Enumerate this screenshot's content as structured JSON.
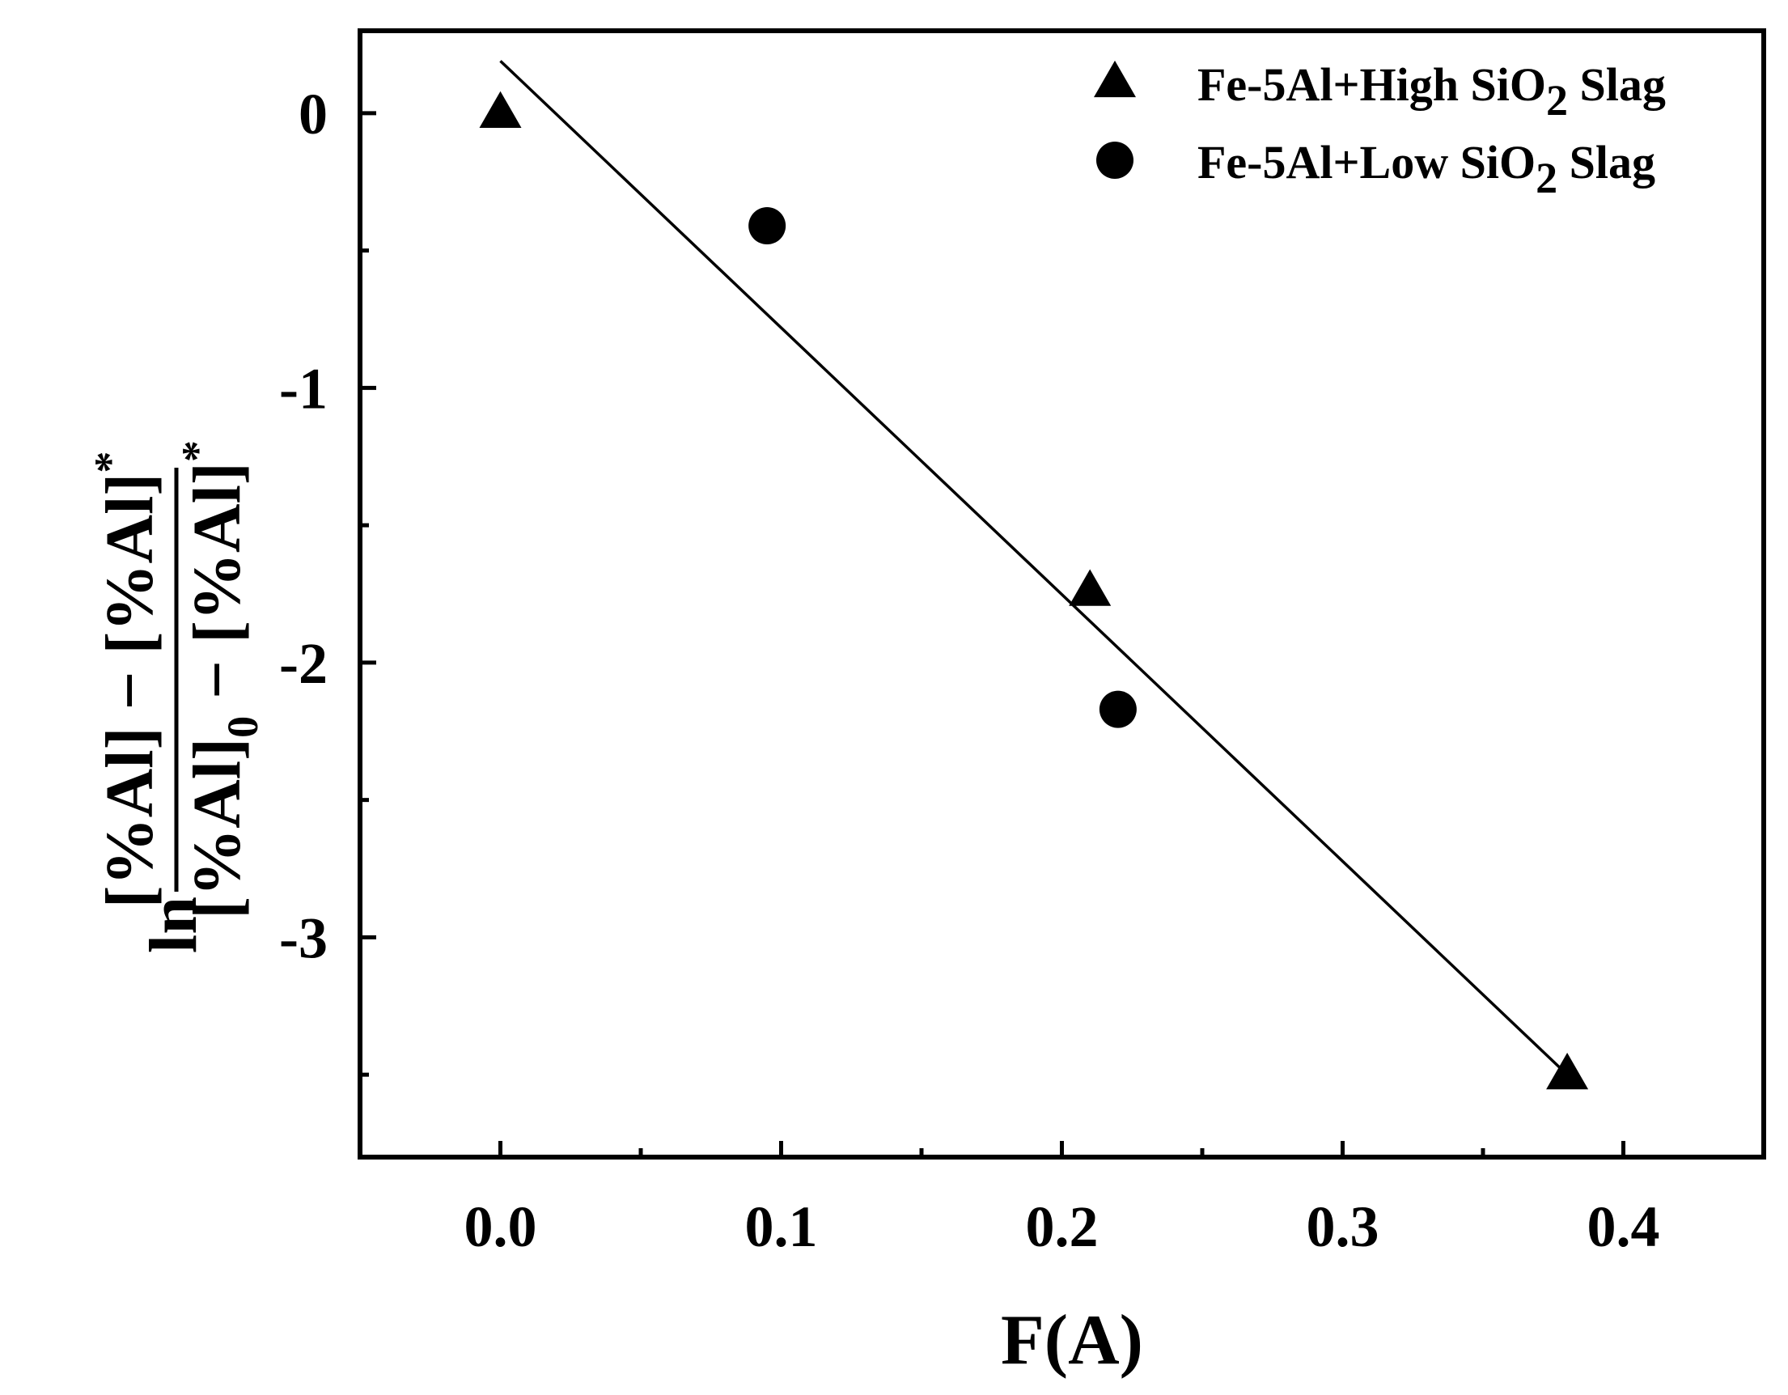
{
  "chart_data": {
    "type": "scatter",
    "title": "",
    "xlabel": "F(A)",
    "ylabel": {
      "prefix": "ln",
      "numerator": "[%Al] − [%Al]",
      "numerator_sup": "*",
      "denominator": "[%Al]",
      "denominator_sub": "0",
      "denominator_rest": " − [%Al]",
      "denominator_sup": "*"
    },
    "xlim": [
      -0.05,
      0.45
    ],
    "ylim": [
      -3.8,
      0.3
    ],
    "x_ticks": [
      0.0,
      0.1,
      0.2,
      0.3,
      0.4
    ],
    "x_tick_labels": [
      "0.0",
      "0.1",
      "0.2",
      "0.3",
      "0.4"
    ],
    "x_minor_ticks": [
      0.05,
      0.15,
      0.25,
      0.35
    ],
    "y_ticks": [
      0,
      -1,
      -2,
      -3
    ],
    "y_tick_labels": [
      "0",
      "-1",
      "-2",
      "-3"
    ],
    "y_minor_ticks": [
      -0.5,
      -1.5,
      -2.5,
      -3.5
    ],
    "grid": false,
    "legend_position": "top-right",
    "series": [
      {
        "name": "Fe-5Al+High SiO₂ Slag",
        "name_parts": [
          "Fe-5Al+High SiO",
          "2",
          " Slag"
        ],
        "marker": "triangle",
        "color": "#000000",
        "points": [
          [
            0.0,
            0.0
          ],
          [
            0.21,
            -1.74
          ],
          [
            0.38,
            -3.5
          ]
        ]
      },
      {
        "name": "Fe-5Al+Low SiO₂ Slag",
        "name_parts": [
          "Fe-5Al+Low SiO",
          "2",
          " Slag"
        ],
        "marker": "circle",
        "color": "#000000",
        "points": [
          [
            0.095,
            -0.41
          ],
          [
            0.22,
            -2.17
          ]
        ]
      }
    ],
    "fit_line": {
      "x": [
        0.0,
        0.38
      ],
      "y": [
        0.19,
        -3.5
      ],
      "color": "#000000"
    }
  }
}
